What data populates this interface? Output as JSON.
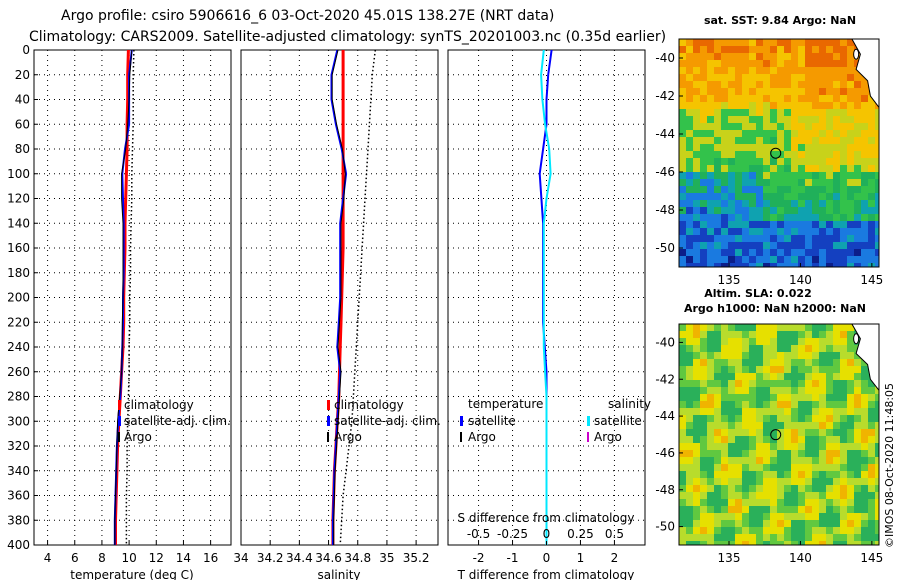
{
  "header": {
    "title_line1": "Argo profile: csiro 5906616_6 03-Oct-2020 45.01S 138.27E (NRT data)",
    "title_line2": "Climatology: CARS2009. Satellite-adjusted climatology: synTS_20201003.nc (0.35d earlier)"
  },
  "copyright": "©IMOS 08-Oct-2020 11:48:05",
  "colors": {
    "climatology": "#ff0000",
    "satellite": "#0000ff",
    "argo": "#000000",
    "salinity_satellite": "#00e8ff",
    "salinity_argo": "#cc00cc"
  },
  "chart_data": [
    {
      "type": "line",
      "name": "temperature-profile",
      "xlabel": "temperature (deg C)",
      "xlim": [
        3,
        17.5
      ],
      "ylim": [
        400,
        0
      ],
      "xticks": [
        4,
        6,
        8,
        10,
        12,
        14,
        16
      ],
      "xtick_labels": [
        "4",
        "6",
        "8",
        "10",
        "12",
        "14",
        "16"
      ],
      "yticks": [
        0,
        20,
        40,
        60,
        80,
        100,
        120,
        140,
        160,
        180,
        200,
        220,
        240,
        260,
        280,
        300,
        320,
        340,
        360,
        380,
        400
      ],
      "ytick_labels": [
        "0",
        "20",
        "40",
        "60",
        "80",
        "100",
        "120",
        "140",
        "160",
        "180",
        "200",
        "220",
        "240",
        "260",
        "280",
        "300",
        "320",
        "340",
        "360",
        "380",
        "400"
      ],
      "grid": true,
      "legend": [
        "climatology",
        "satellite-adj. clim.",
        "Argo"
      ],
      "series": [
        {
          "name": "climatology",
          "style": "solid",
          "color": "#ff0000",
          "width": 3,
          "x": [
            9.95,
            9.9,
            9.9,
            9.85,
            9.85,
            9.8,
            9.75,
            9.7,
            9.7,
            9.65,
            9.6,
            9.6,
            9.55,
            9.45,
            9.35,
            9.25,
            9.15,
            9.1,
            9.05,
            9.0,
            9.0
          ],
          "y": [
            0,
            20,
            40,
            60,
            80,
            100,
            120,
            140,
            160,
            180,
            200,
            220,
            240,
            260,
            280,
            300,
            320,
            340,
            360,
            380,
            400
          ]
        },
        {
          "name": "satellite-adj. clim.",
          "style": "solid",
          "color": "#0000ff",
          "width": 2,
          "x": [
            10.2,
            10.0,
            10.0,
            10.0,
            9.7,
            9.5,
            9.55,
            9.6,
            9.6,
            9.6,
            9.55,
            9.55,
            9.5,
            9.45,
            9.35,
            9.2,
            9.1,
            9.05,
            9.0,
            8.95,
            8.95
          ],
          "y": [
            0,
            20,
            40,
            60,
            80,
            100,
            120,
            140,
            160,
            180,
            200,
            220,
            240,
            260,
            280,
            300,
            320,
            340,
            360,
            380,
            400
          ]
        },
        {
          "name": "Argo",
          "style": "solid",
          "color": "#000000",
          "width": 1,
          "x": [
            10.2,
            10.05,
            10.0,
            9.9,
            9.75,
            9.45,
            9.45,
            9.55,
            9.55,
            9.55,
            9.55,
            9.5,
            9.5,
            9.45,
            9.3,
            9.15,
            9.1,
            9.05,
            9.0,
            8.95,
            8.95
          ],
          "y": [
            0,
            20,
            40,
            60,
            80,
            100,
            120,
            140,
            160,
            180,
            200,
            220,
            240,
            260,
            280,
            300,
            320,
            340,
            360,
            380,
            400
          ]
        },
        {
          "name": "clim-range",
          "style": "dotted",
          "color": "#000000",
          "width": 1.5,
          "x": [
            10.35,
            10.3,
            10.3,
            10.3,
            10.25,
            10.2,
            10.2,
            10.15,
            10.1,
            10.1,
            10.05,
            10.05,
            10.0,
            10.0,
            9.95,
            9.9,
            9.85,
            9.85,
            9.8,
            9.8,
            9.8
          ],
          "y": [
            0,
            20,
            40,
            60,
            80,
            100,
            120,
            140,
            160,
            180,
            200,
            220,
            240,
            260,
            280,
            300,
            320,
            340,
            360,
            380,
            400
          ]
        }
      ]
    },
    {
      "type": "line",
      "name": "salinity-profile",
      "xlabel": "salinity",
      "xlim": [
        34.0,
        35.35
      ],
      "ylim": [
        400,
        0
      ],
      "xticks": [
        34.0,
        34.2,
        34.4,
        34.6,
        34.8,
        35.0,
        35.2
      ],
      "xtick_labels": [
        "34",
        "34.2",
        "34.4",
        "34.6",
        "34.8",
        "35",
        "35.2"
      ],
      "grid": true,
      "legend": [
        "climatology",
        "satellite-adj. clim.",
        "Argo"
      ],
      "series": [
        {
          "name": "climatology",
          "style": "solid",
          "color": "#ff0000",
          "width": 3,
          "x": [
            34.7,
            34.7,
            34.7,
            34.7,
            34.7,
            34.7,
            34.7,
            34.7,
            34.7,
            34.695,
            34.69,
            34.685,
            34.68,
            34.675,
            34.67,
            34.66,
            34.65,
            34.64,
            34.635,
            34.63,
            34.63
          ],
          "y": [
            0,
            20,
            40,
            60,
            80,
            100,
            120,
            140,
            160,
            180,
            200,
            220,
            240,
            260,
            280,
            300,
            320,
            340,
            360,
            380,
            400
          ]
        },
        {
          "name": "satellite-adj. clim.",
          "style": "solid",
          "color": "#0000ff",
          "width": 2,
          "x": [
            34.66,
            34.62,
            34.62,
            34.65,
            34.69,
            34.72,
            34.7,
            34.68,
            34.68,
            34.68,
            34.68,
            34.67,
            34.66,
            34.68,
            34.67,
            34.66,
            34.65,
            34.64,
            34.635,
            34.63,
            34.63
          ],
          "y": [
            0,
            20,
            40,
            60,
            80,
            100,
            120,
            140,
            160,
            180,
            200,
            220,
            240,
            260,
            280,
            300,
            320,
            340,
            360,
            380,
            400
          ]
        },
        {
          "name": "Argo",
          "style": "solid",
          "color": "#000000",
          "width": 1,
          "x": [
            34.665,
            34.625,
            34.625,
            34.655,
            34.695,
            34.715,
            34.705,
            34.685,
            34.685,
            34.685,
            34.685,
            34.675,
            34.665,
            34.685,
            34.675,
            34.665,
            34.655,
            34.645,
            34.64,
            34.635,
            34.635
          ],
          "y": [
            0,
            20,
            40,
            60,
            80,
            100,
            120,
            140,
            160,
            180,
            200,
            220,
            240,
            260,
            280,
            300,
            320,
            340,
            360,
            380,
            400
          ]
        },
        {
          "name": "clim-range",
          "style": "dotted",
          "color": "#000000",
          "width": 1.5,
          "x": [
            34.92,
            34.9,
            34.89,
            34.88,
            34.87,
            34.86,
            34.85,
            34.84,
            34.83,
            34.82,
            34.81,
            34.8,
            34.79,
            34.78,
            34.77,
            34.76,
            34.74,
            34.72,
            34.7,
            34.69,
            34.68
          ],
          "y": [
            0,
            20,
            40,
            60,
            80,
            100,
            120,
            140,
            160,
            180,
            200,
            220,
            240,
            260,
            280,
            300,
            320,
            340,
            360,
            380,
            400
          ]
        }
      ]
    },
    {
      "type": "line",
      "name": "difference-profile",
      "xlabel": "T difference from climatology",
      "secondary_xlabel": "S difference from climatology",
      "xlim": [
        -2.9,
        2.9
      ],
      "ylim": [
        400,
        0
      ],
      "xticks": [
        -2,
        -1,
        0,
        1,
        2
      ],
      "xtick_labels": [
        "-2",
        "-1",
        "0",
        "1",
        "2"
      ],
      "secondary_xticks": [
        -0.5,
        -0.25,
        0,
        0.25,
        0.5
      ],
      "secondary_xtick_labels": [
        "-0.5",
        "-0.25",
        "0",
        "0.25",
        "0.5"
      ],
      "secondary_xlim": [
        -0.725,
        0.725
      ],
      "grid": true,
      "legend_temperature_title": "temperature",
      "legend_salinity_title": "salinity",
      "legend_temperature": [
        "satellite",
        "Argo"
      ],
      "legend_salinity": [
        "satellite",
        "Argo"
      ],
      "series": [
        {
          "name": "temperature satellite",
          "style": "solid",
          "color": "#0000ff",
          "width": 2,
          "axis": "T",
          "x": [
            0.15,
            0.05,
            0.0,
            0.0,
            -0.1,
            -0.2,
            -0.15,
            -0.1,
            -0.1,
            -0.1,
            -0.1,
            -0.1,
            -0.05,
            0.0,
            0.0,
            0.0,
            0.0,
            0.0,
            0.0,
            0.0,
            0.0
          ],
          "y": [
            0,
            20,
            40,
            60,
            80,
            100,
            120,
            140,
            160,
            180,
            200,
            220,
            240,
            260,
            280,
            300,
            320,
            340,
            360,
            380,
            400
          ]
        },
        {
          "name": "salinity satellite",
          "style": "solid",
          "color": "#00e8ff",
          "width": 2,
          "axis": "S",
          "x": [
            -0.02,
            -0.04,
            -0.03,
            -0.01,
            0.02,
            0.03,
            0.0,
            -0.02,
            -0.02,
            -0.02,
            -0.02,
            -0.02,
            -0.02,
            -0.01,
            0.0,
            0.0,
            0.0,
            0.0,
            0.0,
            0.0,
            0.0
          ],
          "y": [
            0,
            20,
            40,
            60,
            80,
            100,
            120,
            140,
            160,
            180,
            200,
            220,
            240,
            260,
            280,
            300,
            320,
            340,
            360,
            380,
            400
          ]
        }
      ]
    },
    {
      "type": "heatmap",
      "name": "sst-map",
      "title": "sat. SST: 9.84 Argo: NaN",
      "xlim": [
        131.5,
        145.5
      ],
      "ylim": [
        -51,
        -39
      ],
      "xticks": [
        135,
        140,
        145
      ],
      "xtick_labels": [
        "135",
        "140",
        "145"
      ],
      "yticks": [
        -40,
        -42,
        -44,
        -46,
        -48,
        -50
      ],
      "ytick_labels": [
        "-40",
        "-42",
        "-44",
        "-46",
        "-48",
        "-50"
      ],
      "marker": {
        "lon": 138.27,
        "lat": -45.01
      }
    },
    {
      "type": "heatmap",
      "name": "sla-map",
      "title": "Altim. SLA: 0.022",
      "subtitle": "Argo h1000: NaN h2000: NaN",
      "xlim": [
        131.5,
        145.5
      ],
      "ylim": [
        -51,
        -39
      ],
      "xticks": [
        135,
        140,
        145
      ],
      "xtick_labels": [
        "135",
        "140",
        "145"
      ],
      "yticks": [
        -40,
        -42,
        -44,
        -46,
        -48,
        -50
      ],
      "ytick_labels": [
        "-40",
        "-42",
        "-44",
        "-46",
        "-48",
        "-50"
      ],
      "marker": {
        "lon": 138.27,
        "lat": -45.01
      }
    }
  ]
}
